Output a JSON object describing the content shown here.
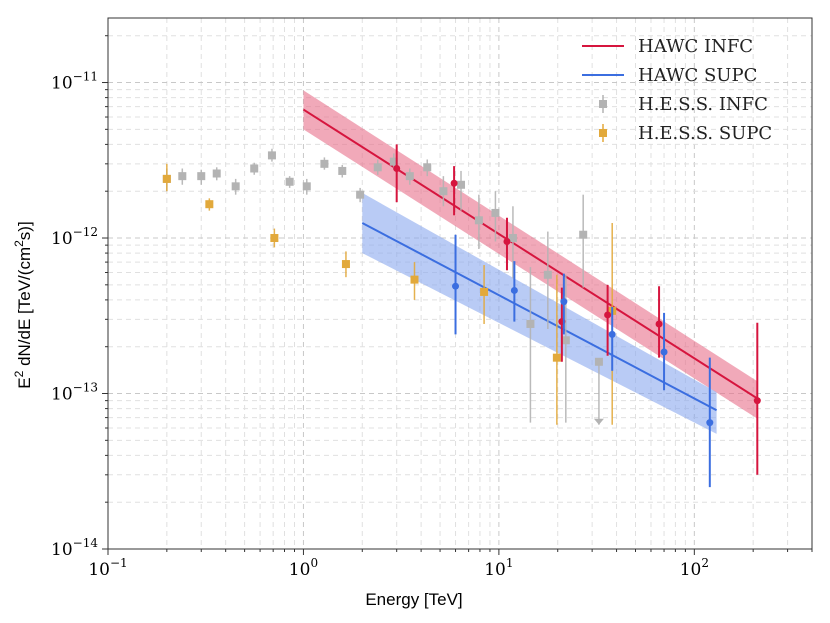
{
  "chart_data": {
    "type": "scatter",
    "title": "",
    "xlabel": "Energy [TeV]",
    "ylabel": "E2 dN/dE [TeV/(cm2s)]",
    "ylabel_parts": {
      "pre": "E",
      "sup1": "2",
      "mid": " dN/dE [TeV/(cm",
      "sup2": "2",
      "post": "s)]"
    },
    "xscale": "log",
    "yscale": "log",
    "xlim": [
      0.1,
      400
    ],
    "ylim": [
      1e-14,
      2.6e-11
    ],
    "grid": true,
    "legend_position": "top-right",
    "x_ticks": [
      {
        "value": 0.1,
        "base": "10",
        "exp": "−1"
      },
      {
        "value": 1,
        "base": "10",
        "exp": "0"
      },
      {
        "value": 10,
        "base": "10",
        "exp": "1"
      },
      {
        "value": 100,
        "base": "10",
        "exp": "2"
      }
    ],
    "y_ticks": [
      {
        "value": 1e-14,
        "base": "10",
        "exp": "−14"
      },
      {
        "value": 1e-13,
        "base": "10",
        "exp": "−13"
      },
      {
        "value": 1e-12,
        "base": "10",
        "exp": "−12"
      },
      {
        "value": 1e-11,
        "base": "10",
        "exp": "−11"
      }
    ],
    "bands": [
      {
        "name": "HAWC INFC",
        "color": "#d6153e",
        "fill": "#e8708a",
        "x": [
          1.0,
          210
        ],
        "line": [
          6.7e-12,
          9.3e-14
        ],
        "upper": [
          8.9e-12,
          1.2e-13
        ],
        "lower": [
          5e-12,
          6.9e-14
        ]
      },
      {
        "name": "HAWC SUPC",
        "color": "#3b6ee0",
        "fill": "#8aa8ee",
        "x": [
          2.0,
          130
        ],
        "line": [
          1.25e-12,
          7.8e-14
        ],
        "upper": [
          1.95e-12,
          1.02e-13
        ],
        "lower": [
          8e-13,
          5.5e-14
        ]
      }
    ],
    "series": [
      {
        "name": "HAWC INFC",
        "color": "#d6153e",
        "marker": "circle",
        "points": [
          {
            "x": 3.0,
            "y": 2.8e-12,
            "lo": 1.7e-12,
            "hi": 4e-12
          },
          {
            "x": 5.9,
            "y": 2.25e-12,
            "lo": 1.4e-12,
            "hi": 2.9e-12
          },
          {
            "x": 11.0,
            "y": 9.5e-13,
            "lo": 6.2e-13,
            "hi": 1.35e-12
          },
          {
            "x": 21.0,
            "y": 2.9e-13,
            "lo": 1.6e-13,
            "hi": 4.8e-13
          },
          {
            "x": 36.0,
            "y": 3.2e-13,
            "lo": 1.75e-13,
            "hi": 5e-13
          },
          {
            "x": 66.0,
            "y": 2.8e-13,
            "lo": 1.7e-13,
            "hi": 4.9e-13
          },
          {
            "x": 210.0,
            "y": 9e-14,
            "lo": 3e-14,
            "hi": 2.85e-13
          }
        ]
      },
      {
        "name": "HAWC SUPC",
        "color": "#3b6ee0",
        "marker": "circle",
        "points": [
          {
            "x": 6.0,
            "y": 4.9e-13,
            "lo": 2.4e-13,
            "hi": 1.05e-12
          },
          {
            "x": 12.0,
            "y": 4.6e-13,
            "lo": 2.9e-13,
            "hi": 7.1e-13
          },
          {
            "x": 21.5,
            "y": 3.9e-13,
            "lo": 2.4e-13,
            "hi": 5.9e-13
          },
          {
            "x": 38.0,
            "y": 2.4e-13,
            "lo": 1.4e-13,
            "hi": 3.6e-13
          },
          {
            "x": 70.0,
            "y": 1.85e-13,
            "lo": 1.05e-13,
            "hi": 3.3e-13
          },
          {
            "x": 120.0,
            "y": 6.5e-14,
            "lo": 2.5e-14,
            "hi": 1.7e-13
          }
        ]
      },
      {
        "name": "H.E.S.S. INFC",
        "color": "#b3b3b3",
        "marker": "square",
        "points": [
          {
            "x": 0.2,
            "y": 2.4e-12,
            "lo": 2e-12,
            "hi": 2.8e-12
          },
          {
            "x": 0.24,
            "y": 2.5e-12,
            "lo": 2.2e-12,
            "hi": 2.8e-12
          },
          {
            "x": 0.3,
            "y": 2.5e-12,
            "lo": 2.2e-12,
            "hi": 2.75e-12
          },
          {
            "x": 0.36,
            "y": 2.6e-12,
            "lo": 2.35e-12,
            "hi": 2.85e-12
          },
          {
            "x": 0.45,
            "y": 2.15e-12,
            "lo": 1.9e-12,
            "hi": 2.4e-12
          },
          {
            "x": 0.56,
            "y": 2.8e-12,
            "lo": 2.55e-12,
            "hi": 3.05e-12
          },
          {
            "x": 0.69,
            "y": 3.4e-12,
            "lo": 3.1e-12,
            "hi": 3.75e-12
          },
          {
            "x": 0.85,
            "y": 2.3e-12,
            "lo": 2.1e-12,
            "hi": 2.5e-12
          },
          {
            "x": 1.04,
            "y": 2.15e-12,
            "lo": 1.9e-12,
            "hi": 2.4e-12
          },
          {
            "x": 1.28,
            "y": 3e-12,
            "lo": 2.75e-12,
            "hi": 3.3e-12
          },
          {
            "x": 1.58,
            "y": 2.7e-12,
            "lo": 2.45e-12,
            "hi": 2.95e-12
          },
          {
            "x": 1.95,
            "y": 1.9e-12,
            "lo": 1.7e-12,
            "hi": 2.1e-12
          },
          {
            "x": 2.4,
            "y": 2.85e-12,
            "lo": 2.55e-12,
            "hi": 3.2e-12
          },
          {
            "x": 2.9,
            "y": 3.1e-12,
            "lo": 2.75e-12,
            "hi": 3.5e-12
          },
          {
            "x": 3.5,
            "y": 2.5e-12,
            "lo": 2.2e-12,
            "hi": 2.8e-12
          },
          {
            "x": 4.3,
            "y": 2.85e-12,
            "lo": 2.5e-12,
            "hi": 3.2e-12
          },
          {
            "x": 5.2,
            "y": 2e-12,
            "lo": 1.6e-12,
            "hi": 2.5e-12
          },
          {
            "x": 6.4,
            "y": 2.2e-12,
            "lo": 1.5e-12,
            "hi": 2.7e-12
          },
          {
            "x": 7.9,
            "y": 1.3e-12,
            "lo": 8.5e-13,
            "hi": 1.9e-12
          },
          {
            "x": 9.6,
            "y": 1.45e-12,
            "lo": 9.5e-13,
            "hi": 2e-12
          },
          {
            "x": 11.8,
            "y": 1e-12,
            "lo": 5.5e-13,
            "hi": 1.6e-12
          },
          {
            "x": 14.5,
            "y": 2.8e-13,
            "lo": 6.5e-14,
            "hi": 6.5e-13
          },
          {
            "x": 17.8,
            "y": 5.8e-13,
            "lo": 2.6e-13,
            "hi": 1.1e-12
          },
          {
            "x": 22.0,
            "y": 2.2e-13,
            "lo": 6.5e-14,
            "hi": 5.8e-13
          },
          {
            "x": 27.0,
            "y": 1.05e-12,
            "lo": 4.8e-13,
            "hi": 1.9e-12
          },
          {
            "x": 32.5,
            "y": 1.6e-13,
            "lo": 6.3e-14,
            "hi": 1.6e-13,
            "upper_limit": true
          }
        ]
      },
      {
        "name": "H.E.S.S. SUPC",
        "color": "#e2a93b",
        "marker": "square",
        "points": [
          {
            "x": 0.2,
            "y": 2.4e-12,
            "lo": 2e-12,
            "hi": 3e-12
          },
          {
            "x": 0.33,
            "y": 1.65e-12,
            "lo": 1.5e-12,
            "hi": 1.8e-12
          },
          {
            "x": 0.71,
            "y": 1e-12,
            "lo": 8.7e-13,
            "hi": 1.15e-12
          },
          {
            "x": 1.65,
            "y": 6.8e-13,
            "lo": 5.6e-13,
            "hi": 8.2e-13
          },
          {
            "x": 3.7,
            "y": 5.4e-13,
            "lo": 4e-13,
            "hi": 7e-13
          },
          {
            "x": 8.4,
            "y": 4.5e-13,
            "lo": 2.8e-13,
            "hi": 6.7e-13
          },
          {
            "x": 19.8,
            "y": 1.7e-13,
            "lo": 6.3e-14,
            "hi": 5.8e-13
          },
          {
            "x": 38.0,
            "y": 3.4e-13,
            "lo": 6.3e-14,
            "hi": 1.25e-12
          }
        ]
      }
    ],
    "legend": [
      {
        "label": "HAWC INFC",
        "color": "#d6153e",
        "kind": "line"
      },
      {
        "label": "HAWC SUPC",
        "color": "#3b6ee0",
        "kind": "line"
      },
      {
        "label": "H.E.S.S. INFC",
        "color": "#b3b3b3",
        "kind": "errorbar"
      },
      {
        "label": "H.E.S.S. SUPC",
        "color": "#e2a93b",
        "kind": "errorbar"
      }
    ]
  }
}
